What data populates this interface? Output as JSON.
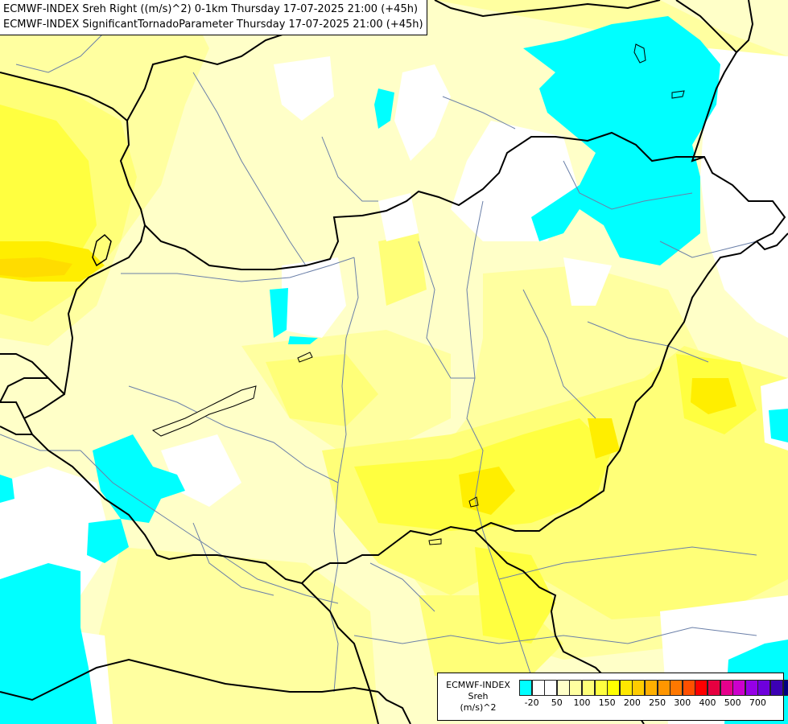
{
  "titles": {
    "line1": "ECMWF-INDEX Sreh Right ((m/s)^2) 0-1km Thursday 17-07-2025 21:00 (+45h)",
    "line2": "ECMWF-INDEX SignificantTornadoParameter Thursday 17-07-2025 21:00 (+45h)"
  },
  "legend": {
    "label_lines": [
      "ECMWF-INDEX",
      "Sreh",
      "(m/s)^2"
    ],
    "colors": [
      "#00ffff",
      "#ffffff",
      "#ffffff",
      "#ffffc8",
      "#ffffa0",
      "#ffff78",
      "#ffff40",
      "#ffff00",
      "#ffe800",
      "#ffcc00",
      "#ffb000",
      "#ff9600",
      "#ff7800",
      "#ff5000",
      "#ff0000",
      "#e60040",
      "#e6008c",
      "#cc00cc",
      "#9600e6",
      "#6e00dc",
      "#3c00b4",
      "#000080"
    ],
    "ticks": [
      "-20",
      "50",
      "100",
      "150",
      "200",
      "250",
      "300",
      "400",
      "500",
      "700"
    ]
  },
  "map_colors": {
    "base": "#ffffc8",
    "light_yellow": "#ffffa0",
    "yellow": "#ffff78",
    "deep_yellow": "#ffff40",
    "strong_yellow": "#ffee00",
    "orange_yellow": "#ffdc00",
    "cyan": "#00ffff",
    "white": "#ffffff",
    "river": "#6a7fa8",
    "border": "#000000"
  }
}
